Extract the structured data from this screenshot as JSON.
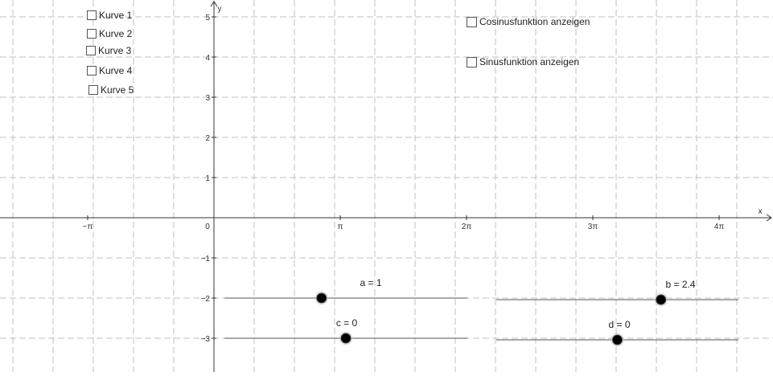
{
  "axes": {
    "x_label": "x",
    "y_label": "y",
    "origin_label": "0",
    "x_ticks": [
      "−π",
      "π",
      "2π",
      "3π",
      "4π"
    ],
    "y_ticks": [
      "5",
      "4",
      "3",
      "2",
      "1",
      "−1",
      "−2",
      "−3"
    ],
    "grid": true
  },
  "checkboxes": [
    {
      "label": "Kurve 1",
      "checked": false
    },
    {
      "label": "Kurve 2",
      "checked": false
    },
    {
      "label": "Kurve 3",
      "checked": false
    },
    {
      "label": "Kurve 4",
      "checked": false
    },
    {
      "label": "Kurve 5",
      "checked": false
    },
    {
      "label": "Cosinusfunktion anzeigen",
      "checked": false
    },
    {
      "label": "Sinusfunktion anzeigen",
      "checked": false
    }
  ],
  "sliders": [
    {
      "name": "a",
      "label": "a = 1",
      "value": 1,
      "min": -1,
      "max": 4
    },
    {
      "name": "b",
      "label": "b = 2.4",
      "value": 2.4,
      "min": -1,
      "max": 4
    },
    {
      "name": "c",
      "label": "c = 0",
      "value": 0,
      "min": -1,
      "max": 1
    },
    {
      "name": "d",
      "label": "d = 0",
      "value": 0,
      "min": -3,
      "max": 3
    }
  ],
  "colors": {
    "grid": "#c0c0c0",
    "axis": "#333333",
    "slider_line": "#777777",
    "point": "#000000"
  }
}
